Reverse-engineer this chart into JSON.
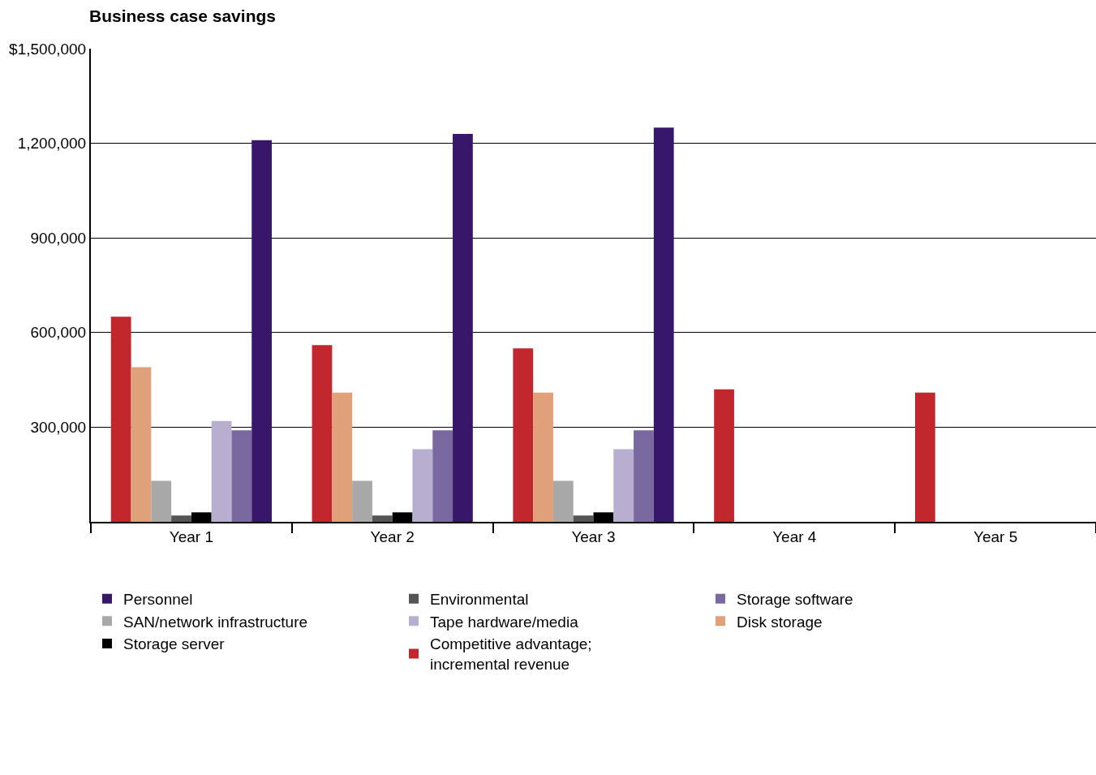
{
  "chart_data": {
    "type": "bar",
    "title": "Business case savings",
    "categories": [
      "Year 1",
      "Year 2",
      "Year 3",
      "Year 4",
      "Year 5"
    ],
    "series": [
      {
        "name": "Competitive advantage;\nincremental revenue",
        "color": "#c1272d",
        "values": [
          650000,
          560000,
          550000,
          420000,
          410000
        ]
      },
      {
        "name": "Disk storage",
        "color": "#e0a07a",
        "values": [
          490000,
          410000,
          410000,
          null,
          null
        ]
      },
      {
        "name": "SAN/network infrastructure",
        "color": "#a8a8a8",
        "values": [
          130000,
          130000,
          130000,
          null,
          null
        ]
      },
      {
        "name": "Environmental",
        "color": "#555555",
        "values": [
          20000,
          20000,
          20000,
          null,
          null
        ]
      },
      {
        "name": "Storage server",
        "color": "#000000",
        "values": [
          30000,
          30000,
          30000,
          null,
          null
        ]
      },
      {
        "name": "Tape hardware/media",
        "color": "#b8aed0",
        "values": [
          320000,
          230000,
          230000,
          null,
          null
        ]
      },
      {
        "name": "Storage software",
        "color": "#7a68a0",
        "values": [
          290000,
          290000,
          290000,
          null,
          null
        ]
      },
      {
        "name": "Personnel",
        "color": "#38176b",
        "values": [
          1210000,
          1230000,
          1250000,
          null,
          null
        ]
      }
    ],
    "ylim": [
      0,
      1500000
    ],
    "yticks": [
      {
        "value": 0,
        "label": null
      },
      {
        "value": 300000,
        "label": "300,000"
      },
      {
        "value": 600000,
        "label": "600,000"
      },
      {
        "value": 900000,
        "label": "900,000"
      },
      {
        "value": 1200000,
        "label": "1,200,000"
      },
      {
        "value": 1500000,
        "label": "$1,500,000"
      }
    ],
    "grid": "y",
    "legend": "bottom"
  }
}
